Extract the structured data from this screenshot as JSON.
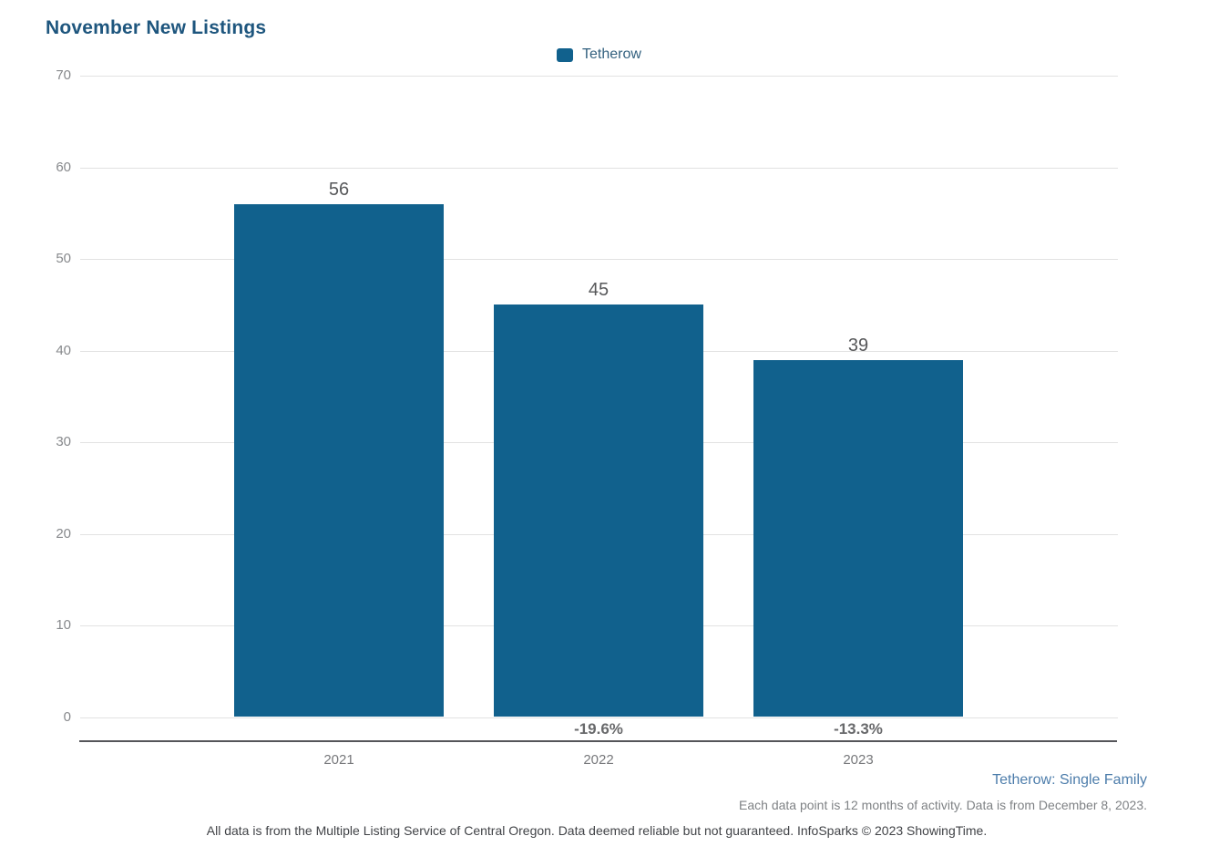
{
  "chart": {
    "title": "November New Listings",
    "legend": {
      "label": "Tetherow"
    },
    "footer": {
      "series_note": "Tetherow: Single Family",
      "data_note": "Each data point is 12 months of activity. Data is from December 8, 2023.",
      "disclaimer": "All data is from the Multiple Listing Service of Central Oregon. Data deemed reliable but not guaranteed. InfoSparks © 2023 ShowingTime."
    }
  },
  "chart_data": {
    "type": "bar",
    "title": "November New Listings",
    "categories": [
      "2021",
      "2022",
      "2023"
    ],
    "series": [
      {
        "name": "Tetherow",
        "values": [
          56,
          45,
          39
        ]
      }
    ],
    "value_labels": [
      "56",
      "45",
      "39"
    ],
    "pct_change_labels": [
      "",
      "-19.6%",
      "-13.3%"
    ],
    "yticks": [
      0,
      10,
      20,
      30,
      40,
      50,
      60,
      70
    ],
    "ylim": [
      0,
      70
    ],
    "grid": true,
    "legend_position": "top-center",
    "xlabel": "",
    "ylabel": ""
  },
  "colors": {
    "bar": "#11618d",
    "title": "#1e567e",
    "legend_text": "#33617f",
    "ytick_text": "#87898c",
    "xtick_text": "#77787b",
    "value_text": "#57585a",
    "pct_text": "#68696b",
    "gridline": "#e2e2e2",
    "axis_line": "#55565a",
    "series_note": "#4d7dab",
    "data_note": "#7f8285",
    "disclaimer": "#414347"
  }
}
